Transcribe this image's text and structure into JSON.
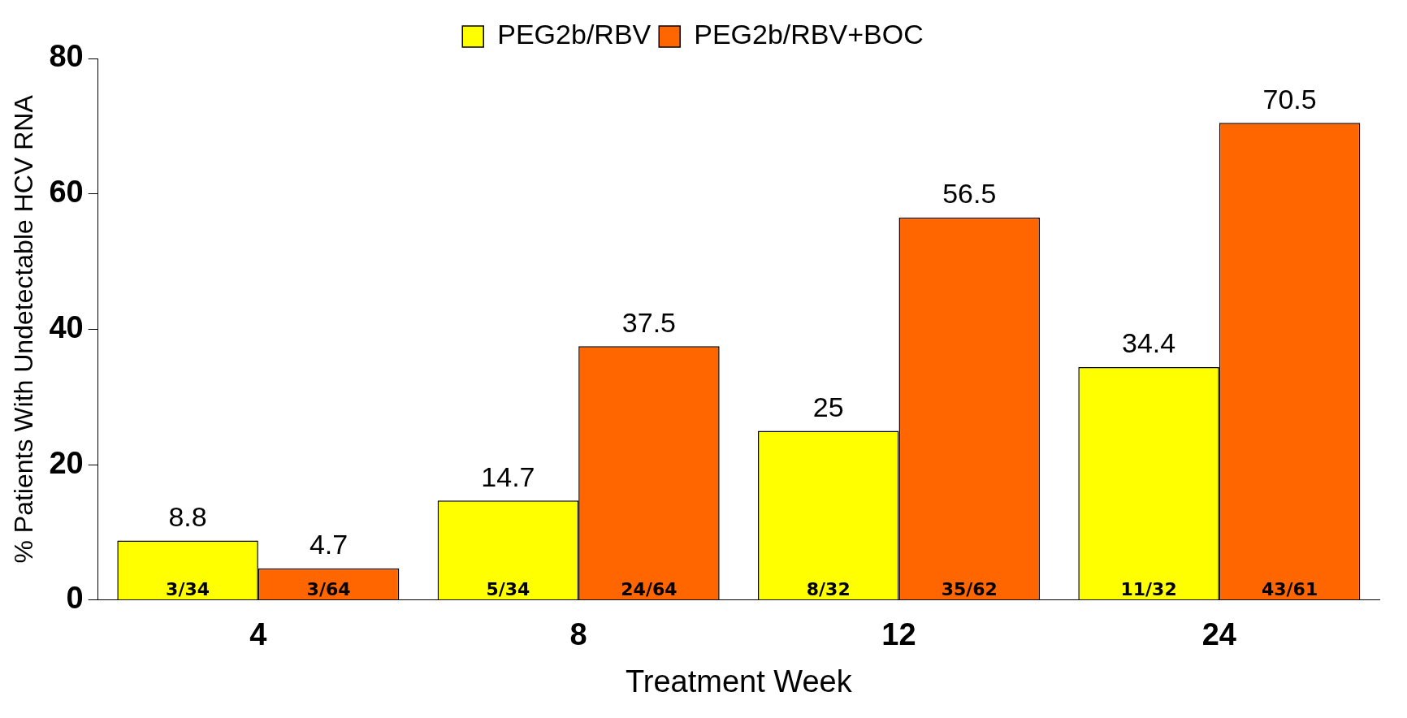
{
  "chart_data": {
    "type": "bar",
    "xlabel": "Treatment Week",
    "ylabel": "% Patients With Undetectable HCV RNA",
    "categories": [
      "4",
      "8",
      "12",
      "24"
    ],
    "series": [
      {
        "name": "PEG2b/RBV",
        "color": "#ffff00",
        "values": [
          8.8,
          14.7,
          25,
          34.4
        ]
      },
      {
        "name": "PEG2b/RBV+BOC",
        "color": "#ff6600",
        "values": [
          4.7,
          37.5,
          56.5,
          70.5
        ]
      }
    ],
    "ylim": [
      0,
      80
    ],
    "yticks": [
      0,
      20,
      40,
      60,
      80
    ],
    "grid": false,
    "legend": "top",
    "data_labels": true,
    "annotations": [
      "3/34",
      "3/64",
      "5/34",
      "24/64",
      "8/32",
      "35/62",
      "11/32",
      "43/61"
    ]
  }
}
